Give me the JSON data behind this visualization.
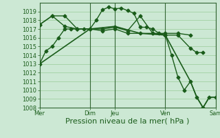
{
  "bg_color": "#cce8d4",
  "grid_color": "#99cc99",
  "line_color": "#1a5c1a",
  "marker_color": "#1a5c1a",
  "xlabel": "Pression niveau de la mer( hPa )",
  "xlabel_fontsize": 8,
  "tick_fontsize": 6,
  "ylim": [
    1008,
    1020
  ],
  "yticks": [
    1008,
    1009,
    1010,
    1011,
    1012,
    1013,
    1014,
    1015,
    1016,
    1017,
    1018,
    1019
  ],
  "xtick_labels": [
    "Mer",
    "Dim",
    "Jeu",
    "Ven",
    "Sam"
  ],
  "xtick_positions": [
    0,
    24,
    36,
    60,
    84
  ],
  "vlines": [
    24,
    36,
    60,
    84
  ],
  "series": [
    {
      "x": [
        0,
        3,
        6,
        9,
        12,
        15,
        18,
        21,
        24,
        27,
        30,
        33,
        36,
        39,
        42,
        45,
        48,
        51,
        54,
        57,
        60,
        63,
        66,
        69,
        72,
        75,
        78,
        81,
        84
      ],
      "y": [
        1013,
        1014.5,
        1015,
        1016,
        1017,
        1017,
        1017,
        1017,
        1017,
        1018,
        1019.2,
        1019.5,
        1019.3,
        1019.4,
        1019.1,
        1018.8,
        1017.2,
        1017.2,
        1017,
        1016.5,
        1016.3,
        1014,
        1011.5,
        1010.0,
        1011.0,
        1009.2,
        1008.0,
        1009.2,
        1009.2
      ],
      "marker": "D",
      "markersize": 2.5,
      "linewidth": 1.0
    },
    {
      "x": [
        0,
        6,
        12,
        18,
        24,
        30,
        36,
        42,
        48,
        54,
        60,
        66,
        72
      ],
      "y": [
        1017.5,
        1018.5,
        1018.5,
        1017,
        1017,
        1017,
        1017.2,
        1016.8,
        1018.5,
        1016.5,
        1016.5,
        1016.5,
        1016.3
      ],
      "marker": "D",
      "markersize": 2.5,
      "linewidth": 1.0
    },
    {
      "x": [
        0,
        6,
        12,
        18,
        24,
        30,
        36,
        42,
        48,
        54,
        60,
        66,
        72,
        75,
        78
      ],
      "y": [
        1017.5,
        1018.5,
        1017.3,
        1017.0,
        1017.0,
        1016.8,
        1017.0,
        1016.5,
        1016.5,
        1016.5,
        1016.3,
        1016.3,
        1014.8,
        1014.3,
        1014.3
      ],
      "marker": "D",
      "markersize": 2.5,
      "linewidth": 1.0
    },
    {
      "x": [
        0,
        24,
        36,
        48,
        60,
        72,
        75,
        78,
        81,
        84
      ],
      "y": [
        1013,
        1017,
        1017.3,
        1016.5,
        1016.3,
        1011.0,
        1009.2,
        1008.0,
        1009.2,
        1009.2
      ],
      "marker": null,
      "markersize": 0,
      "linewidth": 1.2
    }
  ]
}
